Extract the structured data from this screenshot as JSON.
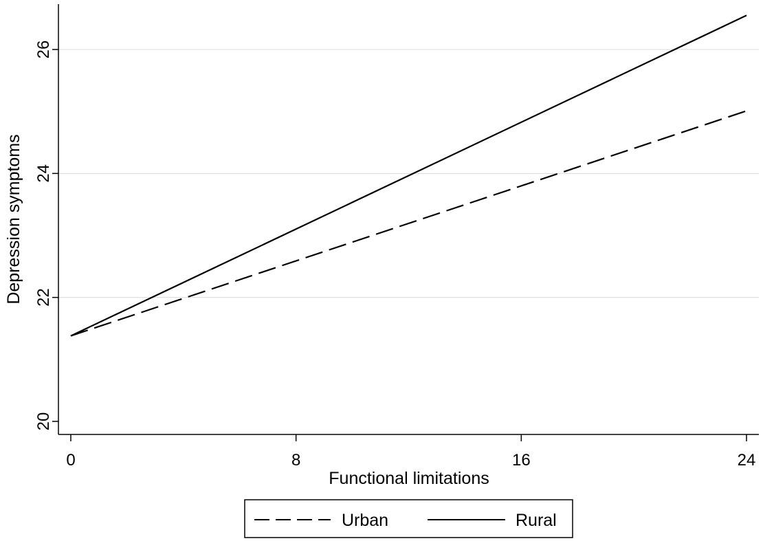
{
  "chart_data": {
    "type": "line",
    "title": "",
    "xlabel": "Functional limitations",
    "ylabel": "Depression symptoms",
    "xlim": [
      0,
      24
    ],
    "ylim": [
      20,
      26.6
    ],
    "xticks": [
      0,
      8,
      16,
      24
    ],
    "yticks": [
      20,
      22,
      24,
      26
    ],
    "xtick_labels": [
      "0",
      "8",
      "16",
      "24"
    ],
    "ytick_labels": [
      "20",
      "22",
      "24",
      "26"
    ],
    "grid": true,
    "legend_position": "bottom",
    "series": [
      {
        "name": "Urban",
        "style": "dashed",
        "color": "#000000",
        "x": [
          0,
          24
        ],
        "y": [
          21.38,
          25.01
        ]
      },
      {
        "name": "Rural",
        "style": "solid",
        "color": "#000000",
        "x": [
          0,
          24
        ],
        "y": [
          21.38,
          26.55
        ]
      }
    ]
  }
}
